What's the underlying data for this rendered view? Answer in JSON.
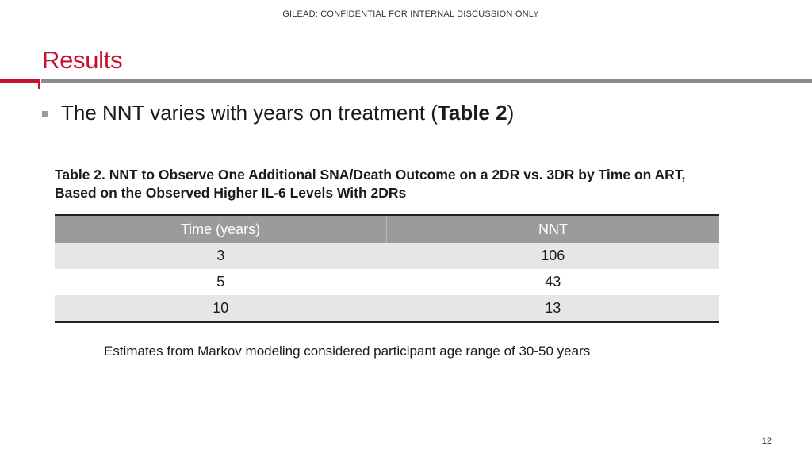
{
  "header": {
    "confidential_notice": "GILEAD:  CONFIDENTIAL FOR INTERNAL DISCUSSION ONLY"
  },
  "slide": {
    "title": "Results",
    "bullet": {
      "text_before": "The NNT varies with years on treatment (",
      "text_bold": "Table 2",
      "text_after": ")"
    },
    "table_caption": "Table 2. NNT to Observe One Additional SNA/Death Outcome on a 2DR vs. 3DR by Time on ART, Based on the Observed Higher IL-6 Levels With 2DRs",
    "table": {
      "headers": [
        "Time (years)",
        "NNT"
      ],
      "rows": [
        [
          "3",
          "106"
        ],
        [
          "5",
          "43"
        ],
        [
          "10",
          "13"
        ]
      ]
    },
    "footnote": "Estimates from Markov modeling considered participant age range of 30-50 years",
    "page_number": "12"
  },
  "colors": {
    "title_red": "#c8102e",
    "rule_gray": "#8c8c8c",
    "table_header_bg": "#9b9b9b",
    "table_row_shade": "#e6e6e6"
  }
}
